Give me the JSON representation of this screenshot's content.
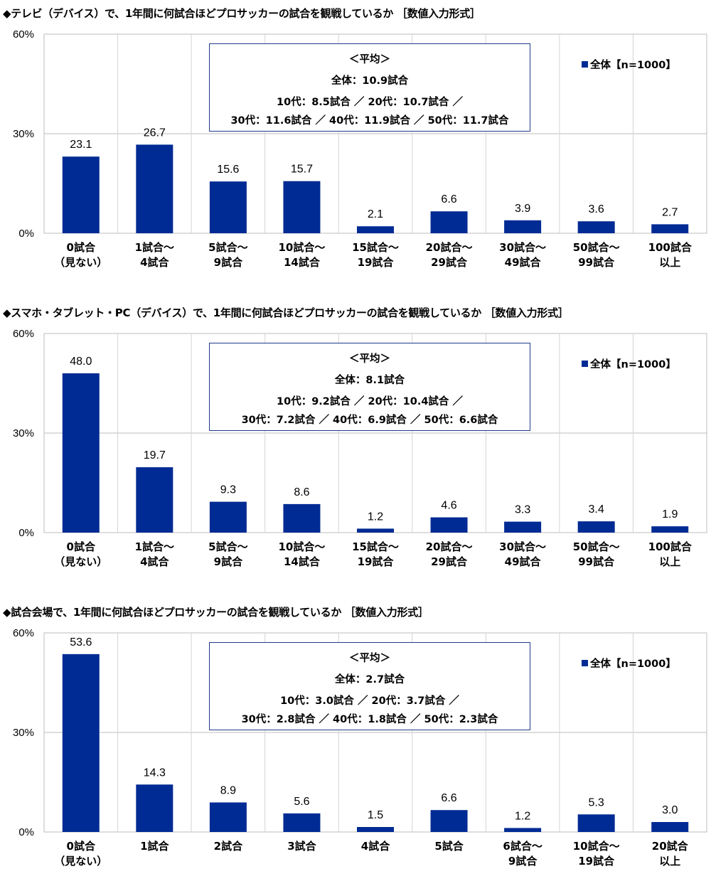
{
  "bar_color": "#002b94",
  "legend_label": "全体【n=1000】",
  "chart_data": [
    {
      "type": "bar",
      "title": "◆テレビ（デバイス）で、1年間に何試合ほどプロサッカーの試合を観戦しているか ［数値入力形式］",
      "categories": [
        [
          "0試合",
          "（見ない）"
        ],
        [
          "1試合～",
          "4試合"
        ],
        [
          "5試合～",
          "9試合"
        ],
        [
          "10試合～",
          "14試合"
        ],
        [
          "15試合～",
          "19試合"
        ],
        [
          "20試合～",
          "29試合"
        ],
        [
          "30試合～",
          "49試合"
        ],
        [
          "50試合～",
          "99試合"
        ],
        [
          "100試合",
          "以上"
        ]
      ],
      "series": [
        {
          "name": "全体【n=1000】",
          "values": [
            23.1,
            26.7,
            15.6,
            15.7,
            2.1,
            6.6,
            3.9,
            3.6,
            2.7
          ]
        }
      ],
      "value_labels": [
        "23.1",
        "26.7",
        "15.6",
        "15.7",
        "2.1",
        "6.6",
        "3.9",
        "3.6",
        "2.7"
      ],
      "yticks": [
        "0%",
        "30%",
        "60%"
      ],
      "ylim": [
        0,
        60
      ],
      "average": {
        "heading": "＜平均＞",
        "overall": "全体：10.9試合",
        "line1": "10代：8.5試合 ／ 20代：10.7試合 ／",
        "line2": "30代：11.6試合 ／ 40代：11.9試合 ／ 50代：11.7試合"
      }
    },
    {
      "type": "bar",
      "title": "◆スマホ・タブレット・PC（デバイス）で、1年間に何試合ほどプロサッカーの試合を観戦しているか ［数値入力形式］",
      "categories": [
        [
          "0試合",
          "（見ない）"
        ],
        [
          "1試合～",
          "4試合"
        ],
        [
          "5試合～",
          "9試合"
        ],
        [
          "10試合～",
          "14試合"
        ],
        [
          "15試合～",
          "19試合"
        ],
        [
          "20試合～",
          "29試合"
        ],
        [
          "30試合～",
          "49試合"
        ],
        [
          "50試合～",
          "99試合"
        ],
        [
          "100試合",
          "以上"
        ]
      ],
      "series": [
        {
          "name": "全体【n=1000】",
          "values": [
            48.0,
            19.7,
            9.3,
            8.6,
            1.2,
            4.6,
            3.3,
            3.4,
            1.9
          ]
        }
      ],
      "value_labels": [
        "48.0",
        "19.7",
        "9.3",
        "8.6",
        "1.2",
        "4.6",
        "3.3",
        "3.4",
        "1.9"
      ],
      "yticks": [
        "0%",
        "30%",
        "60%"
      ],
      "ylim": [
        0,
        60
      ],
      "average": {
        "heading": "＜平均＞",
        "overall": "全体：8.1試合",
        "line1": "10代：9.2試合 ／ 20代：10.4試合 ／",
        "line2": "30代：7.2試合 ／ 40代：6.9試合 ／ 50代：6.6試合"
      }
    },
    {
      "type": "bar",
      "title": "◆試合会場で、1年間に何試合ほどプロサッカーの試合を観戦しているか ［数値入力形式］",
      "categories": [
        [
          "0試合",
          "（見ない）"
        ],
        [
          "1試合"
        ],
        [
          "2試合"
        ],
        [
          "3試合"
        ],
        [
          "4試合"
        ],
        [
          "5試合"
        ],
        [
          "6試合～",
          "9試合"
        ],
        [
          "10試合～",
          "19試合"
        ],
        [
          "20試合",
          "以上"
        ]
      ],
      "series": [
        {
          "name": "全体【n=1000】",
          "values": [
            53.6,
            14.3,
            8.9,
            5.6,
            1.5,
            6.6,
            1.2,
            5.3,
            3.0
          ]
        }
      ],
      "value_labels": [
        "53.6",
        "14.3",
        "8.9",
        "5.6",
        "1.5",
        "6.6",
        "1.2",
        "5.3",
        "3.0"
      ],
      "yticks": [
        "0%",
        "30%",
        "60%"
      ],
      "ylim": [
        0,
        60
      ],
      "average": {
        "heading": "＜平均＞",
        "overall": "全体：2.7試合",
        "line1": "10代：3.0試合 ／ 20代：3.7試合 ／",
        "line2": "30代：2.8試合 ／ 40代：1.8試合 ／ 50代：2.3試合"
      }
    }
  ]
}
